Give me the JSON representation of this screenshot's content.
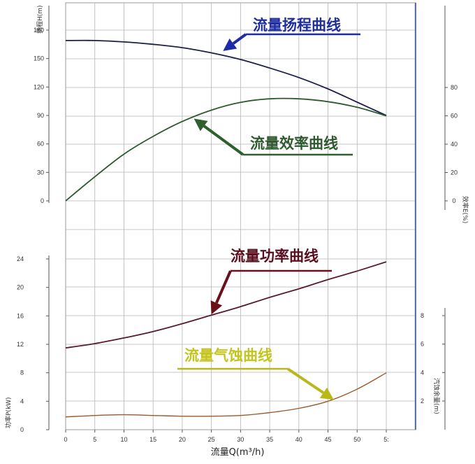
{
  "chart_data": {
    "type": "line",
    "title": "",
    "xlabel": "流量Q(m³/h)",
    "xlim": [
      0,
      55
    ],
    "x_ticks": [
      "0",
      "5",
      "10",
      "15",
      "20",
      "25",
      "30",
      "35",
      "40",
      "45",
      "50",
      "5:"
    ],
    "grid": true,
    "colors": {
      "head": "#1c1f4a",
      "efficiency": "#2c5a2c",
      "power": "#5a1a2a",
      "npsh": "#9a5a2a",
      "arrow_head": "#1e2aa8",
      "arrow_eff": "#2f5f2f",
      "arrow_power": "#6a1018",
      "arrow_npsh": "#b8b818",
      "text_head": "#1e2e9e",
      "text_eff": "#2f5a2f",
      "text_power": "#5a0f1f",
      "text_npsh": "#c4c41e",
      "grid": "#b4b4b4",
      "frame_blue": "#2f4f9a"
    },
    "axes": {
      "head": {
        "label": "扬程H(m)",
        "ticks": [
          0,
          30,
          60,
          90,
          120,
          150,
          180
        ]
      },
      "efficiency": {
        "label": "效率E(%)",
        "ticks": [
          0,
          20,
          40,
          60,
          80
        ]
      },
      "power": {
        "label": "功率P(kW)",
        "ticks": [
          0,
          4,
          8,
          12,
          16,
          20,
          24
        ]
      },
      "npsh": {
        "label": "汽蚀余量(m)",
        "ticks": [
          2,
          4,
          6,
          8
        ]
      }
    },
    "series": [
      {
        "key": "head",
        "axis": "head",
        "x": [
          0,
          5,
          10,
          15,
          20,
          25,
          30,
          35,
          40,
          45,
          50,
          55
        ],
        "y": [
          169,
          169,
          167.5,
          165,
          161.5,
          156,
          149,
          140,
          130,
          118,
          104,
          90
        ]
      },
      {
        "key": "efficiency",
        "axis": "efficiency",
        "x": [
          0,
          5,
          10,
          15,
          20,
          25,
          30,
          35,
          40,
          45,
          50,
          55
        ],
        "y": [
          0,
          17,
          33,
          45.5,
          56,
          64,
          69.5,
          72,
          72,
          70,
          66,
          60
        ]
      },
      {
        "key": "power",
        "axis": "power",
        "x": [
          0,
          5,
          10,
          15,
          20,
          25,
          30,
          35,
          40,
          45,
          50,
          55
        ],
        "y": [
          11.5,
          12.1,
          12.9,
          13.8,
          14.9,
          16.1,
          17.3,
          18.6,
          19.8,
          21.1,
          22.3,
          23.6
        ]
      },
      {
        "key": "npsh",
        "axis": "power",
        "x": [
          0,
          5,
          10,
          15,
          20,
          25,
          30,
          35,
          40,
          45,
          50,
          55
        ],
        "y": [
          1.8,
          2.0,
          2.1,
          2.0,
          1.9,
          1.9,
          2.0,
          2.4,
          3.0,
          4.0,
          5.7,
          8.0
        ]
      }
    ],
    "annotations": [
      {
        "key": "head",
        "text": "流量扬程曲线",
        "point": [
          27,
          158
        ]
      },
      {
        "key": "efficiency",
        "text": "流量效率曲线",
        "point": [
          22,
          58
        ]
      },
      {
        "key": "power",
        "text": "流量功率曲线",
        "point": [
          25,
          16.2
        ]
      },
      {
        "key": "npsh",
        "text": "流量气蚀曲线",
        "point": [
          46,
          4.2
        ]
      }
    ]
  }
}
